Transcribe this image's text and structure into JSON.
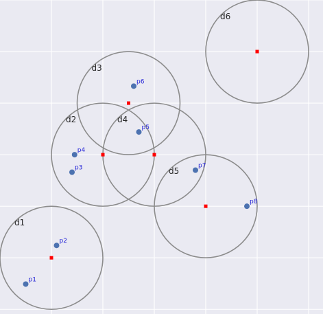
{
  "chart_data": {
    "type": "scatter",
    "title": "",
    "xlabel": "",
    "ylabel": "",
    "xlim": [
      0,
      6.28
    ],
    "ylim": [
      0,
      6.09
    ],
    "grid": true,
    "background": "#eaeaf2",
    "colors": {
      "grid": "#ffffff",
      "circle": "#8c8c8c",
      "center": "#ff0000",
      "point": "#4c72b0",
      "point_label": "#1f1fd6",
      "disk_label": "#262626"
    },
    "x_gridlines": [
      1,
      2,
      3,
      4,
      5,
      6
    ],
    "y_gridlines": [
      0.09,
      1.09,
      2.09,
      3.09,
      4.09,
      5.09,
      6.09
    ],
    "disks": [
      {
        "label": "d1",
        "x": 1.0,
        "y": 1.09,
        "r": 1.0
      },
      {
        "label": "d2",
        "x": 2.0,
        "y": 3.09,
        "r": 1.0
      },
      {
        "label": "d3",
        "x": 2.5,
        "y": 4.09,
        "r": 1.0
      },
      {
        "label": "d4",
        "x": 3.0,
        "y": 3.09,
        "r": 1.0
      },
      {
        "label": "d5",
        "x": 4.0,
        "y": 2.09,
        "r": 1.0
      },
      {
        "label": "d6",
        "x": 5.0,
        "y": 5.09,
        "r": 1.0
      }
    ],
    "points": [
      {
        "label": "p1",
        "x": 0.5,
        "y": 0.58
      },
      {
        "label": "p2",
        "x": 1.1,
        "y": 1.33
      },
      {
        "label": "p3",
        "x": 1.4,
        "y": 2.75
      },
      {
        "label": "p4",
        "x": 1.45,
        "y": 3.09
      },
      {
        "label": "p5",
        "x": 2.7,
        "y": 3.53
      },
      {
        "label": "p6",
        "x": 2.6,
        "y": 4.42
      },
      {
        "label": "p7",
        "x": 3.8,
        "y": 2.79
      },
      {
        "label": "p8",
        "x": 4.8,
        "y": 2.09
      }
    ]
  }
}
